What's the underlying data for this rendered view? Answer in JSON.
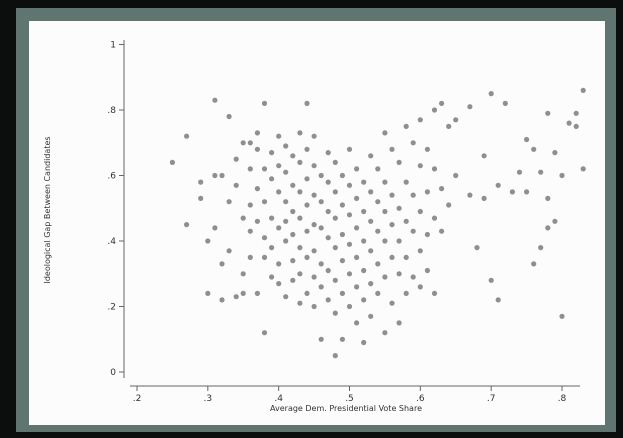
{
  "chart_data": {
    "type": "scatter",
    "title": "",
    "xlabel": "Average Dem. Presidential Vote Share",
    "ylabel": "Ideological Gap Between Candidates",
    "xlim": [
      0.2,
      0.8
    ],
    "ylim": [
      0,
      1.0
    ],
    "xticks": [
      ".2",
      ".3",
      ".4",
      ".5",
      ".6",
      ".7",
      ".8"
    ],
    "xtick_values": [
      0.2,
      0.3,
      0.4,
      0.5,
      0.6,
      0.7,
      0.8
    ],
    "yticks": [
      "0",
      ".2",
      ".4",
      ".6",
      ".8",
      "1"
    ],
    "ytick_values": [
      0,
      0.2,
      0.4,
      0.6,
      0.8,
      1.0
    ],
    "grid": false,
    "marker_color": "#7b7b7b",
    "points": [
      [
        0.25,
        0.64
      ],
      [
        0.27,
        0.72
      ],
      [
        0.27,
        0.45
      ],
      [
        0.29,
        0.58
      ],
      [
        0.29,
        0.53
      ],
      [
        0.3,
        0.4
      ],
      [
        0.3,
        0.24
      ],
      [
        0.31,
        0.83
      ],
      [
        0.31,
        0.6
      ],
      [
        0.31,
        0.44
      ],
      [
        0.32,
        0.6
      ],
      [
        0.32,
        0.33
      ],
      [
        0.32,
        0.22
      ],
      [
        0.33,
        0.78
      ],
      [
        0.33,
        0.52
      ],
      [
        0.33,
        0.37
      ],
      [
        0.34,
        0.23
      ],
      [
        0.34,
        0.65
      ],
      [
        0.34,
        0.57
      ],
      [
        0.35,
        0.7
      ],
      [
        0.35,
        0.47
      ],
      [
        0.35,
        0.3
      ],
      [
        0.35,
        0.24
      ],
      [
        0.36,
        0.7
      ],
      [
        0.36,
        0.62
      ],
      [
        0.36,
        0.51
      ],
      [
        0.36,
        0.43
      ],
      [
        0.36,
        0.35
      ],
      [
        0.37,
        0.73
      ],
      [
        0.37,
        0.56
      ],
      [
        0.37,
        0.46
      ],
      [
        0.37,
        0.24
      ],
      [
        0.37,
        0.68
      ],
      [
        0.38,
        0.62
      ],
      [
        0.38,
        0.52
      ],
      [
        0.38,
        0.41
      ],
      [
        0.38,
        0.82
      ],
      [
        0.38,
        0.12
      ],
      [
        0.38,
        0.35
      ],
      [
        0.39,
        0.67
      ],
      [
        0.39,
        0.59
      ],
      [
        0.39,
        0.47
      ],
      [
        0.39,
        0.38
      ],
      [
        0.39,
        0.29
      ],
      [
        0.4,
        0.72
      ],
      [
        0.4,
        0.63
      ],
      [
        0.4,
        0.55
      ],
      [
        0.4,
        0.44
      ],
      [
        0.4,
        0.33
      ],
      [
        0.4,
        0.27
      ],
      [
        0.41,
        0.69
      ],
      [
        0.41,
        0.61
      ],
      [
        0.41,
        0.52
      ],
      [
        0.41,
        0.46
      ],
      [
        0.41,
        0.4
      ],
      [
        0.41,
        0.23
      ],
      [
        0.42,
        0.66
      ],
      [
        0.42,
        0.57
      ],
      [
        0.42,
        0.49
      ],
      [
        0.42,
        0.42
      ],
      [
        0.42,
        0.34
      ],
      [
        0.42,
        0.28
      ],
      [
        0.43,
        0.73
      ],
      [
        0.43,
        0.64
      ],
      [
        0.43,
        0.55
      ],
      [
        0.43,
        0.47
      ],
      [
        0.43,
        0.38
      ],
      [
        0.43,
        0.3
      ],
      [
        0.43,
        0.21
      ],
      [
        0.44,
        0.82
      ],
      [
        0.44,
        0.68
      ],
      [
        0.44,
        0.59
      ],
      [
        0.44,
        0.51
      ],
      [
        0.44,
        0.43
      ],
      [
        0.44,
        0.35
      ],
      [
        0.44,
        0.24
      ],
      [
        0.45,
        0.72
      ],
      [
        0.45,
        0.63
      ],
      [
        0.45,
        0.54
      ],
      [
        0.45,
        0.45
      ],
      [
        0.45,
        0.37
      ],
      [
        0.45,
        0.29
      ],
      [
        0.45,
        0.2
      ],
      [
        0.46,
        0.6
      ],
      [
        0.46,
        0.52
      ],
      [
        0.46,
        0.44
      ],
      [
        0.46,
        0.33
      ],
      [
        0.46,
        0.26
      ],
      [
        0.46,
        0.1
      ],
      [
        0.47,
        0.67
      ],
      [
        0.47,
        0.58
      ],
      [
        0.47,
        0.49
      ],
      [
        0.47,
        0.41
      ],
      [
        0.47,
        0.31
      ],
      [
        0.47,
        0.22
      ],
      [
        0.48,
        0.64
      ],
      [
        0.48,
        0.55
      ],
      [
        0.48,
        0.47
      ],
      [
        0.48,
        0.38
      ],
      [
        0.48,
        0.28
      ],
      [
        0.48,
        0.18
      ],
      [
        0.48,
        0.05
      ],
      [
        0.49,
        0.6
      ],
      [
        0.49,
        0.51
      ],
      [
        0.49,
        0.42
      ],
      [
        0.49,
        0.34
      ],
      [
        0.49,
        0.24
      ],
      [
        0.49,
        0.1
      ],
      [
        0.5,
        0.68
      ],
      [
        0.5,
        0.57
      ],
      [
        0.5,
        0.48
      ],
      [
        0.5,
        0.39
      ],
      [
        0.5,
        0.3
      ],
      [
        0.5,
        0.2
      ],
      [
        0.51,
        0.62
      ],
      [
        0.51,
        0.53
      ],
      [
        0.51,
        0.44
      ],
      [
        0.51,
        0.35
      ],
      [
        0.51,
        0.26
      ],
      [
        0.51,
        0.15
      ],
      [
        0.52,
        0.58
      ],
      [
        0.52,
        0.49
      ],
      [
        0.52,
        0.4
      ],
      [
        0.52,
        0.31
      ],
      [
        0.52,
        0.22
      ],
      [
        0.52,
        0.09
      ],
      [
        0.53,
        0.66
      ],
      [
        0.53,
        0.55
      ],
      [
        0.53,
        0.46
      ],
      [
        0.53,
        0.37
      ],
      [
        0.53,
        0.27
      ],
      [
        0.53,
        0.17
      ],
      [
        0.54,
        0.62
      ],
      [
        0.54,
        0.52
      ],
      [
        0.54,
        0.43
      ],
      [
        0.54,
        0.33
      ],
      [
        0.54,
        0.24
      ],
      [
        0.55,
        0.73
      ],
      [
        0.55,
        0.58
      ],
      [
        0.55,
        0.49
      ],
      [
        0.55,
        0.4
      ],
      [
        0.55,
        0.29
      ],
      [
        0.55,
        0.12
      ],
      [
        0.56,
        0.68
      ],
      [
        0.56,
        0.54
      ],
      [
        0.56,
        0.45
      ],
      [
        0.56,
        0.35
      ],
      [
        0.56,
        0.21
      ],
      [
        0.57,
        0.64
      ],
      [
        0.57,
        0.5
      ],
      [
        0.57,
        0.4
      ],
      [
        0.57,
        0.3
      ],
      [
        0.57,
        0.15
      ],
      [
        0.58,
        0.75
      ],
      [
        0.58,
        0.58
      ],
      [
        0.58,
        0.46
      ],
      [
        0.58,
        0.35
      ],
      [
        0.58,
        0.24
      ],
      [
        0.59,
        0.7
      ],
      [
        0.59,
        0.54
      ],
      [
        0.59,
        0.43
      ],
      [
        0.59,
        0.29
      ],
      [
        0.6,
        0.77
      ],
      [
        0.6,
        0.63
      ],
      [
        0.6,
        0.49
      ],
      [
        0.6,
        0.37
      ],
      [
        0.6,
        0.26
      ],
      [
        0.61,
        0.68
      ],
      [
        0.61,
        0.55
      ],
      [
        0.61,
        0.42
      ],
      [
        0.61,
        0.31
      ],
      [
        0.62,
        0.8
      ],
      [
        0.62,
        0.62
      ],
      [
        0.62,
        0.47
      ],
      [
        0.62,
        0.24
      ],
      [
        0.63,
        0.82
      ],
      [
        0.63,
        0.56
      ],
      [
        0.63,
        0.43
      ],
      [
        0.64,
        0.75
      ],
      [
        0.64,
        0.51
      ],
      [
        0.65,
        0.77
      ],
      [
        0.65,
        0.6
      ],
      [
        0.67,
        0.81
      ],
      [
        0.67,
        0.54
      ],
      [
        0.68,
        0.38
      ],
      [
        0.69,
        0.66
      ],
      [
        0.69,
        0.53
      ],
      [
        0.7,
        0.85
      ],
      [
        0.7,
        0.28
      ],
      [
        0.71,
        0.57
      ],
      [
        0.71,
        0.22
      ],
      [
        0.72,
        0.82
      ],
      [
        0.73,
        0.55
      ],
      [
        0.74,
        0.61
      ],
      [
        0.75,
        0.71
      ],
      [
        0.75,
        0.55
      ],
      [
        0.76,
        0.68
      ],
      [
        0.76,
        0.33
      ],
      [
        0.77,
        0.61
      ],
      [
        0.77,
        0.38
      ],
      [
        0.78,
        0.79
      ],
      [
        0.78,
        0.53
      ],
      [
        0.78,
        0.44
      ],
      [
        0.79,
        0.67
      ],
      [
        0.79,
        0.46
      ],
      [
        0.8,
        0.6
      ],
      [
        0.8,
        0.17
      ],
      [
        0.81,
        0.76
      ],
      [
        0.82,
        0.79
      ],
      [
        0.82,
        0.75
      ],
      [
        0.83,
        0.86
      ],
      [
        0.83,
        0.62
      ]
    ]
  }
}
